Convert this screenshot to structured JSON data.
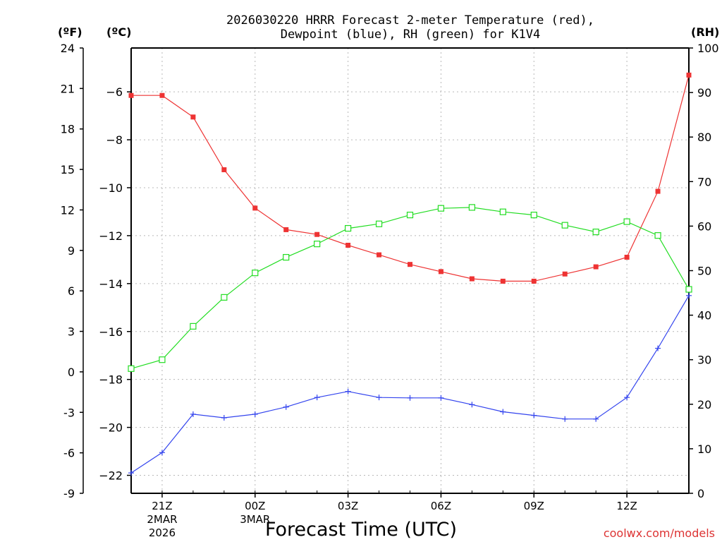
{
  "chart_data": {
    "type": "line",
    "title_line1": "2026030220 HRRR Forecast 2-meter Temperature (red),",
    "title_line2": "Dewpoint (blue), RH (green) for K1V4",
    "xlabel": "Forecast Time (UTC)",
    "credit": "coolwx.com/models",
    "unit_f": "(ºF)",
    "unit_c": "(ºC)",
    "unit_rh": "(RH)",
    "x_hours": [
      0,
      1,
      2,
      3,
      4,
      5,
      6,
      7,
      8,
      9,
      10,
      11,
      12,
      13,
      14,
      15,
      16,
      17,
      18
    ],
    "xlim": [
      0,
      18
    ],
    "x_ticks": [
      {
        "hour": 1,
        "label": "21Z",
        "sub1": "2MAR",
        "sub2": "2026"
      },
      {
        "hour": 4,
        "label": "00Z",
        "sub1": "3MAR",
        "sub2": ""
      },
      {
        "hour": 7,
        "label": "03Z",
        "sub1": "",
        "sub2": ""
      },
      {
        "hour": 10,
        "label": "06Z",
        "sub1": "",
        "sub2": ""
      },
      {
        "hour": 13,
        "label": "09Z",
        "sub1": "",
        "sub2": ""
      },
      {
        "hour": 16,
        "label": "12Z",
        "sub1": "",
        "sub2": ""
      }
    ],
    "ylim_c": [
      -22.75,
      -4.17
    ],
    "ylim_f": [
      -9,
      24
    ],
    "ylim_rh": [
      0,
      100
    ],
    "y_ticks_c": [
      -22,
      -20,
      -18,
      -16,
      -14,
      -12,
      -10,
      -8,
      -6
    ],
    "y_ticks_f": [
      -9,
      -6,
      -3,
      0,
      3,
      6,
      9,
      12,
      15,
      18,
      21,
      24
    ],
    "y_ticks_rh": [
      0,
      10,
      20,
      30,
      40,
      50,
      60,
      70,
      80,
      90,
      100
    ],
    "series": [
      {
        "name": "Temperature",
        "axis": "c",
        "color": "#ee3333",
        "marker": "filled-square",
        "values": [
          -6.15,
          -6.15,
          -7.05,
          -9.25,
          -10.85,
          -11.75,
          -11.95,
          -12.4,
          -12.8,
          -13.2,
          -13.5,
          -13.8,
          -13.9,
          -13.9,
          -13.6,
          -13.3,
          -12.9,
          -10.15,
          -5.3
        ]
      },
      {
        "name": "Dewpoint",
        "axis": "c",
        "color": "#3344ee",
        "marker": "plus",
        "values": [
          -21.9,
          -21.05,
          -19.45,
          -19.6,
          -19.45,
          -19.15,
          -18.75,
          -18.5,
          -18.75,
          -18.77,
          -18.77,
          -19.05,
          -19.35,
          -19.5,
          -19.65,
          -19.65,
          -18.75,
          -16.7,
          -14.5
        ]
      },
      {
        "name": "RH",
        "axis": "rh",
        "color": "#22dd22",
        "marker": "open-square",
        "values": [
          28,
          30,
          37.5,
          44,
          49.5,
          53,
          56,
          59.5,
          60.5,
          62.5,
          64,
          64.2,
          63.2,
          62.5,
          60.2,
          58.7,
          61,
          57.9,
          45.8
        ]
      }
    ]
  }
}
